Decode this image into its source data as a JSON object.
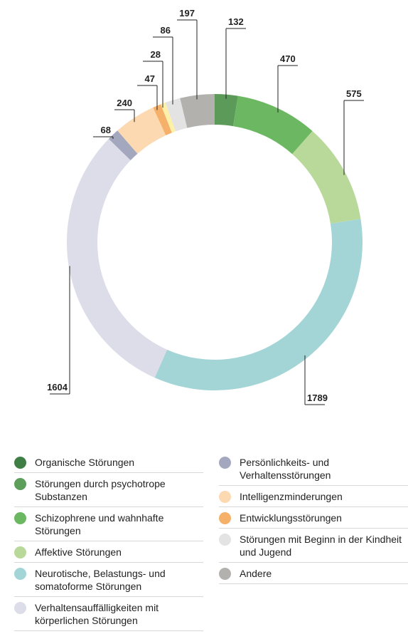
{
  "chart_data": {
    "type": "donut",
    "values": [
      132,
      470,
      575,
      1789,
      1604,
      68,
      240,
      47,
      28,
      86,
      197
    ],
    "colors": [
      "#5b9a58",
      "#6cb862",
      "#b9d99b",
      "#a3d5d6",
      "#dcdde8",
      "#a4a8bf",
      "#fcd9b0",
      "#f5b06a",
      "#fdf0a8",
      "#e3e3e3",
      "#b2b1ae"
    ],
    "legend": {
      "names": [
        "Organische Störungen",
        "Störungen durch psychotrope Substanzen",
        "Schizophrene und wahnhafte Störungen",
        "Affektive Störungen",
        "Neurotische, Belastungs- und somatoforme Störungen",
        "Verhaltensauffälligkeiten mit körperlichen Störungen",
        "Persönlichkeits- und Verhaltensstörungen",
        "Intelligenzminderungen",
        "Entwicklungsstörungen",
        "Störungen mit Beginn in der Kindheit und Jugend",
        "Andere"
      ],
      "colors": [
        "#3f7f46",
        "#5d9e5b",
        "#6cb862",
        "#b9d99b",
        "#a3d5d6",
        "#dcdde8",
        "#a4a8bf",
        "#fcd9b0",
        "#f5b06a",
        "#e3e3e3",
        "#b2b1ae"
      ]
    }
  }
}
